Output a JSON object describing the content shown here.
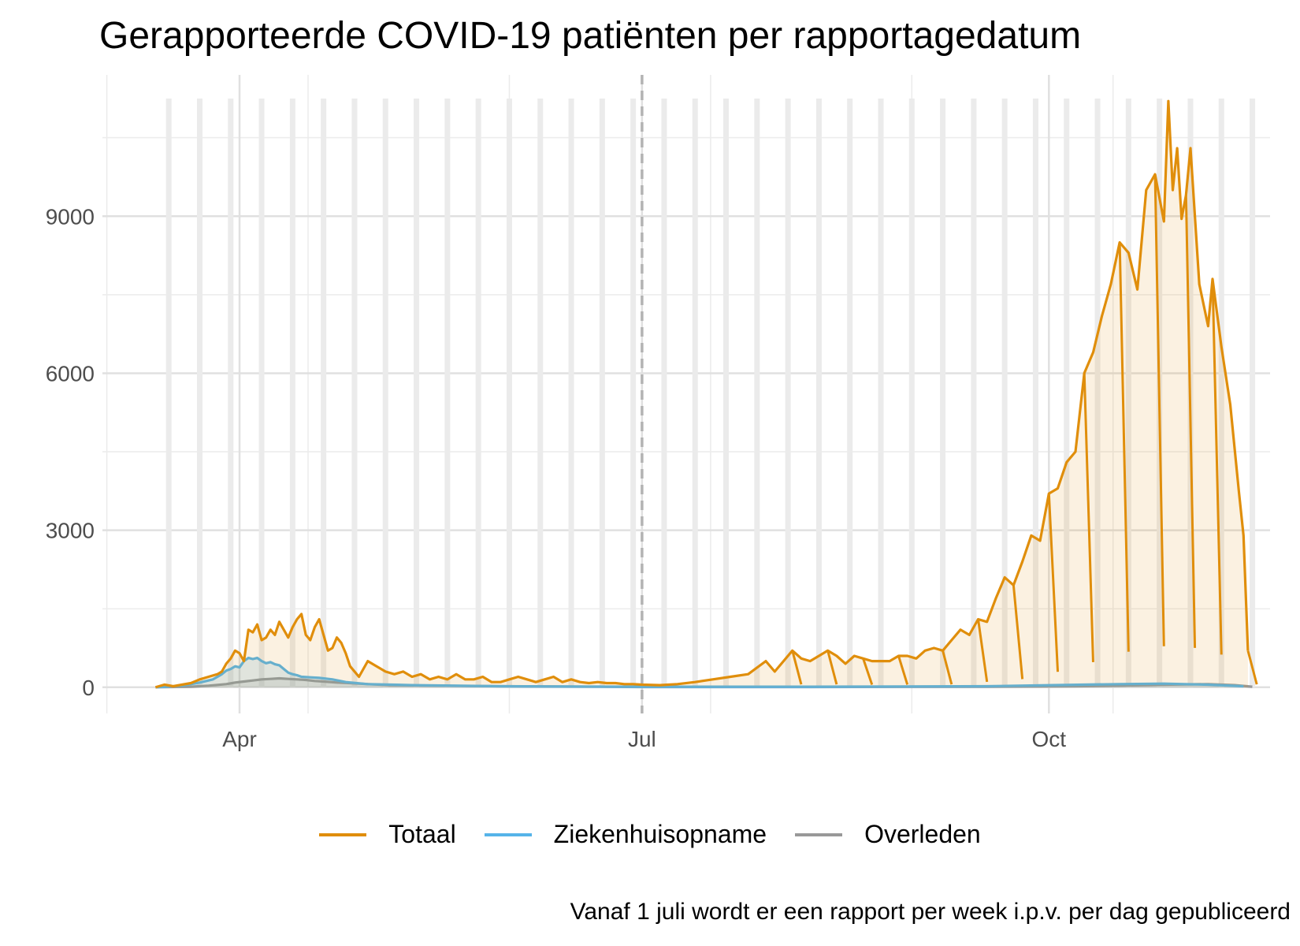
{
  "chart_data": {
    "type": "line",
    "title": "Gerapporteerde COVID-19 patiënten per rapportagedatum",
    "caption": "Vanaf 1 juli wordt er een rapport per week i.p.v. per dag gepubliceerd",
    "xlabel": "",
    "ylabel": "",
    "ylim": [
      -500,
      11700
    ],
    "yticks": [
      0,
      3000,
      6000,
      9000
    ],
    "x_unit": "days since 1 Jan 2020",
    "xlim": [
      60,
      324
    ],
    "xticks": [
      {
        "x": 91,
        "label": "Apr"
      },
      {
        "x": 182,
        "label": "Jul"
      },
      {
        "x": 274,
        "label": "Oct"
      }
    ],
    "reference_line": {
      "x": 182,
      "style": "dashed"
    },
    "series": [
      {
        "name": "Totaal",
        "color": "#E08E0B",
        "points": [
          [
            72,
            0
          ],
          [
            74,
            50
          ],
          [
            76,
            20
          ],
          [
            78,
            50
          ],
          [
            80,
            80
          ],
          [
            82,
            150
          ],
          [
            84,
            200
          ],
          [
            86,
            250
          ],
          [
            87,
            300
          ],
          [
            88,
            450
          ],
          [
            89,
            550
          ],
          [
            90,
            700
          ],
          [
            91,
            650
          ],
          [
            92,
            500
          ],
          [
            93,
            1100
          ],
          [
            94,
            1050
          ],
          [
            95,
            1200
          ],
          [
            96,
            900
          ],
          [
            97,
            950
          ],
          [
            98,
            1100
          ],
          [
            99,
            1000
          ],
          [
            100,
            1250
          ],
          [
            101,
            1100
          ],
          [
            102,
            950
          ],
          [
            103,
            1150
          ],
          [
            104,
            1300
          ],
          [
            105,
            1400
          ],
          [
            106,
            1000
          ],
          [
            107,
            900
          ],
          [
            108,
            1150
          ],
          [
            109,
            1300
          ],
          [
            110,
            1000
          ],
          [
            111,
            700
          ],
          [
            112,
            750
          ],
          [
            113,
            950
          ],
          [
            114,
            850
          ],
          [
            115,
            650
          ],
          [
            116,
            400
          ],
          [
            118,
            200
          ],
          [
            120,
            500
          ],
          [
            122,
            400
          ],
          [
            124,
            300
          ],
          [
            126,
            250
          ],
          [
            128,
            300
          ],
          [
            130,
            200
          ],
          [
            132,
            250
          ],
          [
            134,
            150
          ],
          [
            136,
            200
          ],
          [
            138,
            150
          ],
          [
            140,
            250
          ],
          [
            142,
            150
          ],
          [
            144,
            150
          ],
          [
            146,
            200
          ],
          [
            148,
            100
          ],
          [
            150,
            100
          ],
          [
            152,
            150
          ],
          [
            154,
            200
          ],
          [
            156,
            150
          ],
          [
            158,
            100
          ],
          [
            160,
            150
          ],
          [
            162,
            200
          ],
          [
            164,
            100
          ],
          [
            166,
            150
          ],
          [
            168,
            100
          ],
          [
            170,
            80
          ],
          [
            172,
            100
          ],
          [
            174,
            80
          ],
          [
            176,
            80
          ],
          [
            178,
            60
          ],
          [
            180,
            60
          ],
          [
            182,
            50
          ],
          [
            186,
            40
          ],
          [
            190,
            60
          ],
          [
            194,
            100
          ],
          [
            198,
            150
          ],
          [
            202,
            200
          ],
          [
            206,
            250
          ],
          [
            210,
            500
          ],
          [
            212,
            300
          ],
          [
            214,
            500
          ],
          [
            216,
            700
          ],
          [
            218,
            550
          ],
          [
            220,
            500
          ],
          [
            222,
            600
          ],
          [
            224,
            700
          ],
          [
            226,
            600
          ],
          [
            228,
            450
          ],
          [
            230,
            600
          ],
          [
            232,
            550
          ],
          [
            234,
            500
          ],
          [
            236,
            500
          ],
          [
            238,
            500
          ],
          [
            240,
            600
          ],
          [
            242,
            600
          ],
          [
            244,
            550
          ],
          [
            246,
            700
          ],
          [
            248,
            750
          ],
          [
            250,
            700
          ],
          [
            252,
            900
          ],
          [
            254,
            1100
          ],
          [
            256,
            1000
          ],
          [
            258,
            1300
          ],
          [
            260,
            1250
          ],
          [
            262,
            1700
          ],
          [
            264,
            2100
          ],
          [
            266,
            1950
          ],
          [
            268,
            2400
          ],
          [
            270,
            2900
          ],
          [
            272,
            2800
          ],
          [
            274,
            3700
          ],
          [
            276,
            3800
          ],
          [
            278,
            4300
          ],
          [
            280,
            4500
          ],
          [
            282,
            6000
          ],
          [
            284,
            6400
          ],
          [
            286,
            7100
          ],
          [
            288,
            7700
          ],
          [
            290,
            8500
          ],
          [
            292,
            8300
          ],
          [
            294,
            7600
          ],
          [
            296,
            9500
          ],
          [
            298,
            9800
          ],
          [
            300,
            8900
          ],
          [
            301,
            11200
          ],
          [
            302,
            9500
          ],
          [
            303,
            10300
          ],
          [
            304,
            8950
          ],
          [
            305,
            9400
          ],
          [
            306,
            10300
          ],
          [
            308,
            7700
          ],
          [
            310,
            6900
          ],
          [
            311,
            7800
          ],
          [
            313,
            6500
          ],
          [
            315,
            5400
          ],
          [
            317,
            3700
          ],
          [
            318,
            2900
          ],
          [
            319,
            700
          ]
        ]
      },
      {
        "name": "Ziekenhuisopname",
        "color": "#56B4E9",
        "points": [
          [
            72,
            0
          ],
          [
            78,
            30
          ],
          [
            82,
            90
          ],
          [
            85,
            150
          ],
          [
            87,
            250
          ],
          [
            88,
            320
          ],
          [
            89,
            350
          ],
          [
            90,
            400
          ],
          [
            91,
            380
          ],
          [
            92,
            500
          ],
          [
            93,
            560
          ],
          [
            94,
            540
          ],
          [
            95,
            560
          ],
          [
            96,
            500
          ],
          [
            97,
            460
          ],
          [
            98,
            480
          ],
          [
            99,
            440
          ],
          [
            100,
            420
          ],
          [
            101,
            350
          ],
          [
            102,
            280
          ],
          [
            103,
            250
          ],
          [
            104,
            230
          ],
          [
            105,
            200
          ],
          [
            107,
            190
          ],
          [
            109,
            180
          ],
          [
            112,
            150
          ],
          [
            115,
            100
          ],
          [
            120,
            60
          ],
          [
            130,
            40
          ],
          [
            150,
            20
          ],
          [
            182,
            10
          ],
          [
            220,
            10
          ],
          [
            260,
            20
          ],
          [
            275,
            40
          ],
          [
            290,
            60
          ],
          [
            300,
            70
          ],
          [
            310,
            50
          ],
          [
            318,
            20
          ]
        ]
      },
      {
        "name": "Overleden",
        "color": "#999999",
        "points": [
          [
            72,
            0
          ],
          [
            80,
            10
          ],
          [
            84,
            30
          ],
          [
            88,
            60
          ],
          [
            90,
            90
          ],
          [
            92,
            110
          ],
          [
            94,
            130
          ],
          [
            96,
            150
          ],
          [
            98,
            160
          ],
          [
            100,
            170
          ],
          [
            102,
            160
          ],
          [
            104,
            150
          ],
          [
            106,
            140
          ],
          [
            108,
            120
          ],
          [
            110,
            110
          ],
          [
            113,
            90
          ],
          [
            116,
            80
          ],
          [
            120,
            60
          ],
          [
            125,
            40
          ],
          [
            135,
            30
          ],
          [
            150,
            20
          ],
          [
            182,
            5
          ],
          [
            220,
            5
          ],
          [
            260,
            10
          ],
          [
            280,
            20
          ],
          [
            290,
            30
          ],
          [
            300,
            50
          ],
          [
            310,
            60
          ],
          [
            316,
            40
          ],
          [
            320,
            10
          ]
        ]
      }
    ]
  },
  "legend": {
    "items": [
      {
        "label": "Totaal",
        "color": "#E08E0B"
      },
      {
        "label": "Ziekenhuisopname",
        "color": "#56B4E9"
      },
      {
        "label": "Overleden",
        "color": "#999999"
      }
    ]
  }
}
